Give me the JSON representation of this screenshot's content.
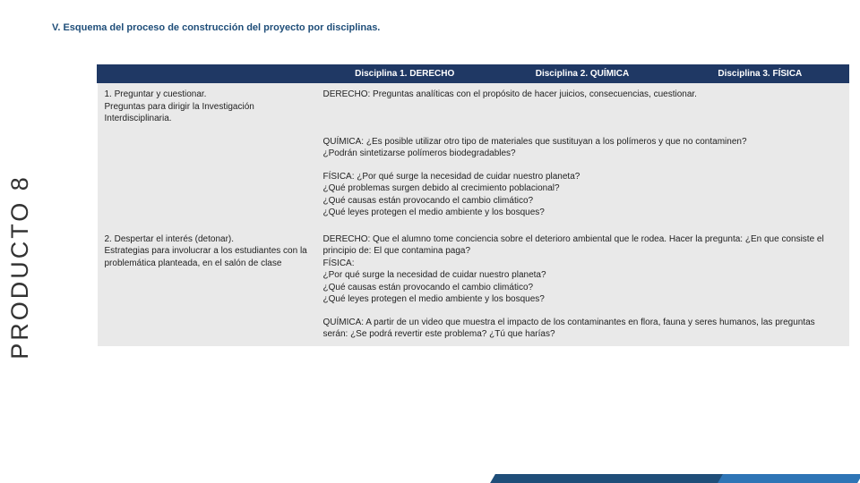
{
  "title": "V. Esquema del proceso de construcción del proyecto por disciplinas.",
  "sideLabel": "PRODUCTO 8",
  "headers": {
    "c1": "Disciplina 1. DERECHO",
    "c2": "Disciplina 2. QUÍMICA",
    "c3": "Disciplina 3. FÍSICA"
  },
  "rows": {
    "r1": {
      "left": "1. Preguntar y cuestionar.\n    Preguntas para dirigir la Investigación Interdisciplinaria.",
      "derecho": "DERECHO: Preguntas analíticas con el propósito de hacer juicios, consecuencias, cuestionar.",
      "quimica": "QUÍMICA: ¿Es posible utilizar otro tipo de materiales que sustituyan a los polímeros y que no contaminen?\n¿Podrán sintetizarse polímeros biodegradables?",
      "fisica": "FÍSICA: ¿Por qué surge la necesidad de cuidar nuestro planeta?\n¿Qué problemas surgen debido al crecimiento poblacional?\n¿Qué causas están provocando el cambio climático?\n¿Qué leyes protegen el medio ambiente y los bosques?"
    },
    "r2": {
      "left": "2. Despertar el interés (detonar).\n    Estrategias para involucrar a los estudiantes con la problemática planteada, en el salón de clase",
      "derecho": "DERECHO: Que el alumno tome conciencia sobre el deterioro ambiental que le rodea. Hacer la pregunta: ¿En que consiste el principio de: El que contamina paga?\nFÍSICA:\n¿Por qué surge la necesidad de cuidar nuestro planeta?\n¿Qué causas están provocando el cambio climático?\n¿Qué leyes protegen el medio ambiente y los bosques?",
      "quimica": "QUÍMICA: A partir de un video que muestra el impacto de los contaminantes en flora, fauna y seres humanos, las preguntas serán: ¿Se podrá revertir este problema? ¿Tú que harías?"
    }
  }
}
